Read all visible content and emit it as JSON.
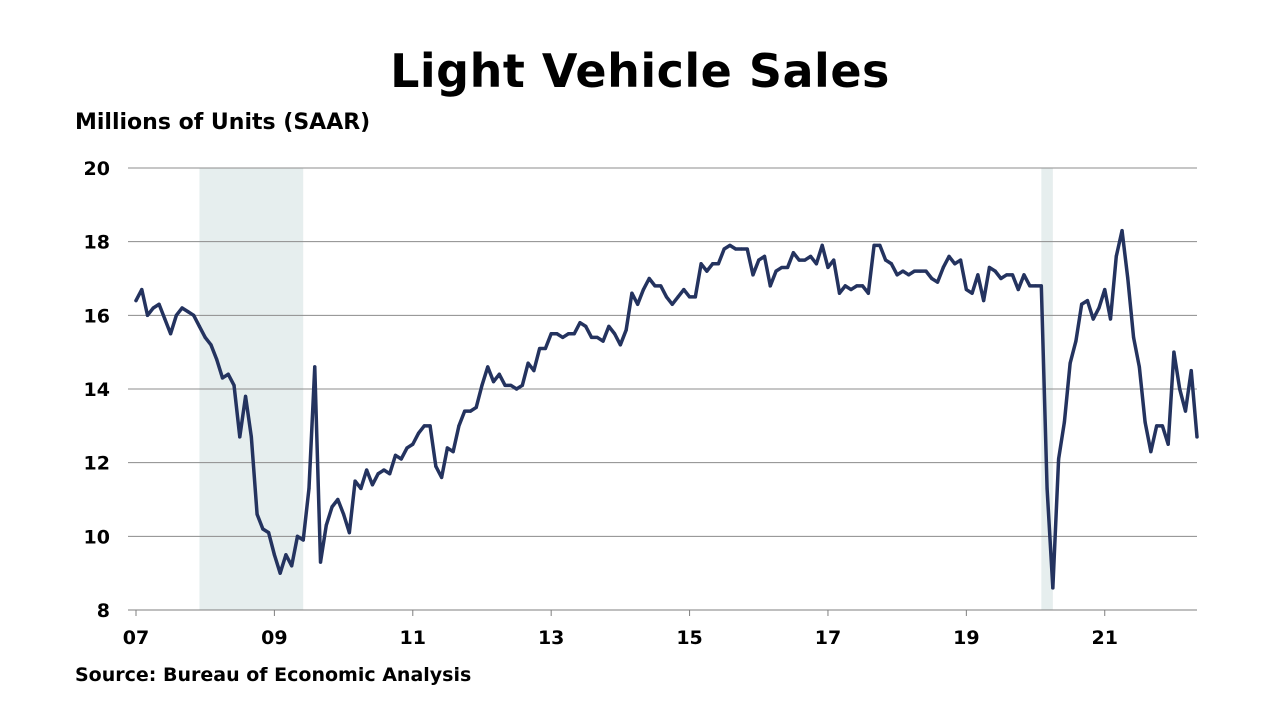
{
  "chart_data": {
    "type": "line",
    "title": "Light Vehicle Sales",
    "ylabel": "Millions of Units (SAAR)",
    "source": "Source: Bureau of Economic Analysis",
    "ylim": [
      8,
      20
    ],
    "yticks": [
      8,
      10,
      12,
      14,
      16,
      18,
      20
    ],
    "xlim": [
      "2007-01",
      "2022-05"
    ],
    "xticks": [
      {
        "date": "2007-01",
        "label": "07"
      },
      {
        "date": "2009-01",
        "label": "09"
      },
      {
        "date": "2011-01",
        "label": "11"
      },
      {
        "date": "2013-01",
        "label": "13"
      },
      {
        "date": "2015-01",
        "label": "15"
      },
      {
        "date": "2017-01",
        "label": "17"
      },
      {
        "date": "2019-01",
        "label": "19"
      },
      {
        "date": "2021-01",
        "label": "21"
      }
    ],
    "grid": "horizontal",
    "line_color": "#24335f",
    "recession_color": "#e6eeee",
    "recessions": [
      {
        "start": "2007-12",
        "end": "2009-06"
      },
      {
        "start": "2020-02",
        "end": "2020-04"
      }
    ],
    "series": [
      {
        "points": [
          [
            "2007-01",
            16.4
          ],
          [
            "2007-02",
            16.7
          ],
          [
            "2007-03",
            16.0
          ],
          [
            "2007-04",
            16.2
          ],
          [
            "2007-05",
            16.3
          ],
          [
            "2007-06",
            15.9
          ],
          [
            "2007-07",
            15.5
          ],
          [
            "2007-08",
            16.0
          ],
          [
            "2007-09",
            16.2
          ],
          [
            "2007-10",
            16.1
          ],
          [
            "2007-11",
            16.0
          ],
          [
            "2007-12",
            15.7
          ],
          [
            "2008-01",
            15.4
          ],
          [
            "2008-02",
            15.2
          ],
          [
            "2008-03",
            14.8
          ],
          [
            "2008-04",
            14.3
          ],
          [
            "2008-05",
            14.4
          ],
          [
            "2008-06",
            14.1
          ],
          [
            "2008-07",
            12.7
          ],
          [
            "2008-08",
            13.8
          ],
          [
            "2008-09",
            12.7
          ],
          [
            "2008-10",
            10.6
          ],
          [
            "2008-11",
            10.2
          ],
          [
            "2008-12",
            10.1
          ],
          [
            "2009-01",
            9.5
          ],
          [
            "2009-02",
            9.0
          ],
          [
            "2009-03",
            9.5
          ],
          [
            "2009-04",
            9.2
          ],
          [
            "2009-05",
            10.0
          ],
          [
            "2009-06",
            9.9
          ],
          [
            "2009-07",
            11.3
          ],
          [
            "2009-08",
            14.6
          ],
          [
            "2009-09",
            9.3
          ],
          [
            "2009-10",
            10.3
          ],
          [
            "2009-11",
            10.8
          ],
          [
            "2009-12",
            11.0
          ],
          [
            "2010-01",
            10.6
          ],
          [
            "2010-02",
            10.1
          ],
          [
            "2010-03",
            11.5
          ],
          [
            "2010-04",
            11.3
          ],
          [
            "2010-05",
            11.8
          ],
          [
            "2010-06",
            11.4
          ],
          [
            "2010-07",
            11.7
          ],
          [
            "2010-08",
            11.8
          ],
          [
            "2010-09",
            11.7
          ],
          [
            "2010-10",
            12.2
          ],
          [
            "2010-11",
            12.1
          ],
          [
            "2010-12",
            12.4
          ],
          [
            "2011-01",
            12.5
          ],
          [
            "2011-02",
            12.8
          ],
          [
            "2011-03",
            13.0
          ],
          [
            "2011-04",
            13.0
          ],
          [
            "2011-05",
            11.9
          ],
          [
            "2011-06",
            11.6
          ],
          [
            "2011-07",
            12.4
          ],
          [
            "2011-08",
            12.3
          ],
          [
            "2011-09",
            13.0
          ],
          [
            "2011-10",
            13.4
          ],
          [
            "2011-11",
            13.4
          ],
          [
            "2011-12",
            13.5
          ],
          [
            "2012-01",
            14.1
          ],
          [
            "2012-02",
            14.6
          ],
          [
            "2012-03",
            14.2
          ],
          [
            "2012-04",
            14.4
          ],
          [
            "2012-05",
            14.1
          ],
          [
            "2012-06",
            14.1
          ],
          [
            "2012-07",
            14.0
          ],
          [
            "2012-08",
            14.1
          ],
          [
            "2012-09",
            14.7
          ],
          [
            "2012-10",
            14.5
          ],
          [
            "2012-11",
            15.1
          ],
          [
            "2012-12",
            15.1
          ],
          [
            "2013-01",
            15.5
          ],
          [
            "2013-02",
            15.5
          ],
          [
            "2013-03",
            15.4
          ],
          [
            "2013-04",
            15.5
          ],
          [
            "2013-05",
            15.5
          ],
          [
            "2013-06",
            15.8
          ],
          [
            "2013-07",
            15.7
          ],
          [
            "2013-08",
            15.4
          ],
          [
            "2013-09",
            15.4
          ],
          [
            "2013-10",
            15.3
          ],
          [
            "2013-11",
            15.7
          ],
          [
            "2013-12",
            15.5
          ],
          [
            "2014-01",
            15.2
          ],
          [
            "2014-02",
            15.6
          ],
          [
            "2014-03",
            16.6
          ],
          [
            "2014-04",
            16.3
          ],
          [
            "2014-05",
            16.7
          ],
          [
            "2014-06",
            17.0
          ],
          [
            "2014-07",
            16.8
          ],
          [
            "2014-08",
            16.8
          ],
          [
            "2014-09",
            16.5
          ],
          [
            "2014-10",
            16.3
          ],
          [
            "2014-11",
            16.5
          ],
          [
            "2014-12",
            16.7
          ],
          [
            "2015-01",
            16.5
          ],
          [
            "2015-02",
            16.5
          ],
          [
            "2015-03",
            17.4
          ],
          [
            "2015-04",
            17.2
          ],
          [
            "2015-05",
            17.4
          ],
          [
            "2015-06",
            17.4
          ],
          [
            "2015-07",
            17.8
          ],
          [
            "2015-08",
            17.9
          ],
          [
            "2015-09",
            17.8
          ],
          [
            "2015-10",
            17.8
          ],
          [
            "2015-11",
            17.8
          ],
          [
            "2015-12",
            17.1
          ],
          [
            "2016-01",
            17.5
          ],
          [
            "2016-02",
            17.6
          ],
          [
            "2016-03",
            16.8
          ],
          [
            "2016-04",
            17.2
          ],
          [
            "2016-05",
            17.3
          ],
          [
            "2016-06",
            17.3
          ],
          [
            "2016-07",
            17.7
          ],
          [
            "2016-08",
            17.5
          ],
          [
            "2016-09",
            17.5
          ],
          [
            "2016-10",
            17.6
          ],
          [
            "2016-11",
            17.4
          ],
          [
            "2016-12",
            17.9
          ],
          [
            "2017-01",
            17.3
          ],
          [
            "2017-02",
            17.5
          ],
          [
            "2017-03",
            16.6
          ],
          [
            "2017-04",
            16.8
          ],
          [
            "2017-05",
            16.7
          ],
          [
            "2017-06",
            16.8
          ],
          [
            "2017-07",
            16.8
          ],
          [
            "2017-08",
            16.6
          ],
          [
            "2017-09",
            17.9
          ],
          [
            "2017-10",
            17.9
          ],
          [
            "2017-11",
            17.5
          ],
          [
            "2017-12",
            17.4
          ],
          [
            "2018-01",
            17.1
          ],
          [
            "2018-02",
            17.2
          ],
          [
            "2018-03",
            17.1
          ],
          [
            "2018-04",
            17.2
          ],
          [
            "2018-05",
            17.2
          ],
          [
            "2018-06",
            17.2
          ],
          [
            "2018-07",
            17.0
          ],
          [
            "2018-08",
            16.9
          ],
          [
            "2018-09",
            17.3
          ],
          [
            "2018-10",
            17.6
          ],
          [
            "2018-11",
            17.4
          ],
          [
            "2018-12",
            17.5
          ],
          [
            "2019-01",
            16.7
          ],
          [
            "2019-02",
            16.6
          ],
          [
            "2019-03",
            17.1
          ],
          [
            "2019-04",
            16.4
          ],
          [
            "2019-05",
            17.3
          ],
          [
            "2019-06",
            17.2
          ],
          [
            "2019-07",
            17.0
          ],
          [
            "2019-08",
            17.1
          ],
          [
            "2019-09",
            17.1
          ],
          [
            "2019-10",
            16.7
          ],
          [
            "2019-11",
            17.1
          ],
          [
            "2019-12",
            16.8
          ],
          [
            "2020-01",
            16.8
          ],
          [
            "2020-02",
            16.8
          ],
          [
            "2020-03",
            11.3
          ],
          [
            "2020-04",
            8.6
          ],
          [
            "2020-05",
            12.1
          ],
          [
            "2020-06",
            13.1
          ],
          [
            "2020-07",
            14.7
          ],
          [
            "2020-08",
            15.3
          ],
          [
            "2020-09",
            16.3
          ],
          [
            "2020-10",
            16.4
          ],
          [
            "2020-11",
            15.9
          ],
          [
            "2020-12",
            16.2
          ],
          [
            "2021-01",
            16.7
          ],
          [
            "2021-02",
            15.9
          ],
          [
            "2021-03",
            17.6
          ],
          [
            "2021-04",
            18.3
          ],
          [
            "2021-05",
            17.0
          ],
          [
            "2021-06",
            15.4
          ],
          [
            "2021-07",
            14.6
          ],
          [
            "2021-08",
            13.1
          ],
          [
            "2021-09",
            12.3
          ],
          [
            "2021-10",
            13.0
          ],
          [
            "2021-11",
            13.0
          ],
          [
            "2021-12",
            12.5
          ],
          [
            "2022-01",
            15.0
          ],
          [
            "2022-02",
            14.0
          ],
          [
            "2022-03",
            13.4
          ],
          [
            "2022-04",
            14.5
          ],
          [
            "2022-05",
            12.7
          ]
        ]
      }
    ]
  }
}
